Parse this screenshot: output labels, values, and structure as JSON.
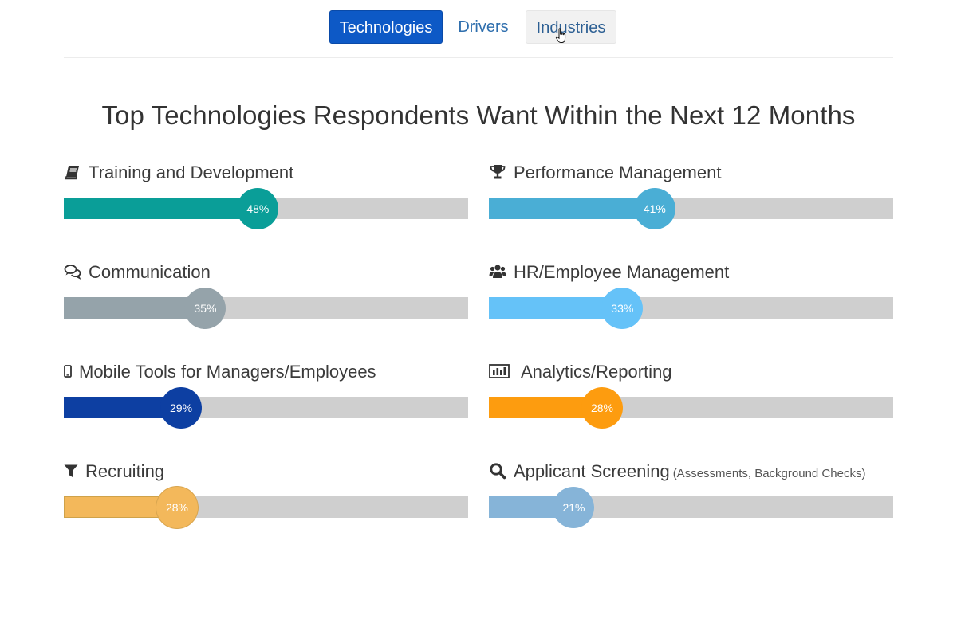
{
  "tabs": [
    {
      "label": "Technologies",
      "state": "active"
    },
    {
      "label": "Drivers",
      "state": "normal"
    },
    {
      "label": "Industries",
      "state": "hover"
    }
  ],
  "title": "Top Technologies Respondents Want Within the Next 12 Months",
  "metrics": [
    {
      "label": "Training and Development",
      "sub": "",
      "value": 48,
      "value_label": "48%",
      "color": "#0a9e98",
      "icon": "book-icon"
    },
    {
      "label": "Performance Management",
      "sub": "",
      "value": 41,
      "value_label": "41%",
      "color": "#4aaed5",
      "icon": "trophy-icon"
    },
    {
      "label": "Communication",
      "sub": "",
      "value": 35,
      "value_label": "35%",
      "color": "#95a3aa",
      "icon": "comments-icon"
    },
    {
      "label": "HR/Employee Management",
      "sub": "",
      "value": 33,
      "value_label": "33%",
      "color": "#65c2f8",
      "icon": "users-icon"
    },
    {
      "label": "Mobile Tools for Managers/Employees",
      "sub": "",
      "value": 29,
      "value_label": "29%",
      "color": "#0d3fa2",
      "icon": "mobile-icon"
    },
    {
      "label": "Analytics/Reporting",
      "sub": "",
      "value": 28,
      "value_label": "28%",
      "color": "#fd9c0f",
      "icon": "bar-chart-icon"
    },
    {
      "label": "Recruiting",
      "sub": "",
      "value": 28,
      "value_label": "28%",
      "color": "#f3b85b",
      "icon": "filter-icon"
    },
    {
      "label": "Applicant Screening",
      "sub": "(Assessments, Background Checks)",
      "value": 21,
      "value_label": "21%",
      "color": "#86b4d8",
      "icon": "search-icon"
    }
  ]
}
